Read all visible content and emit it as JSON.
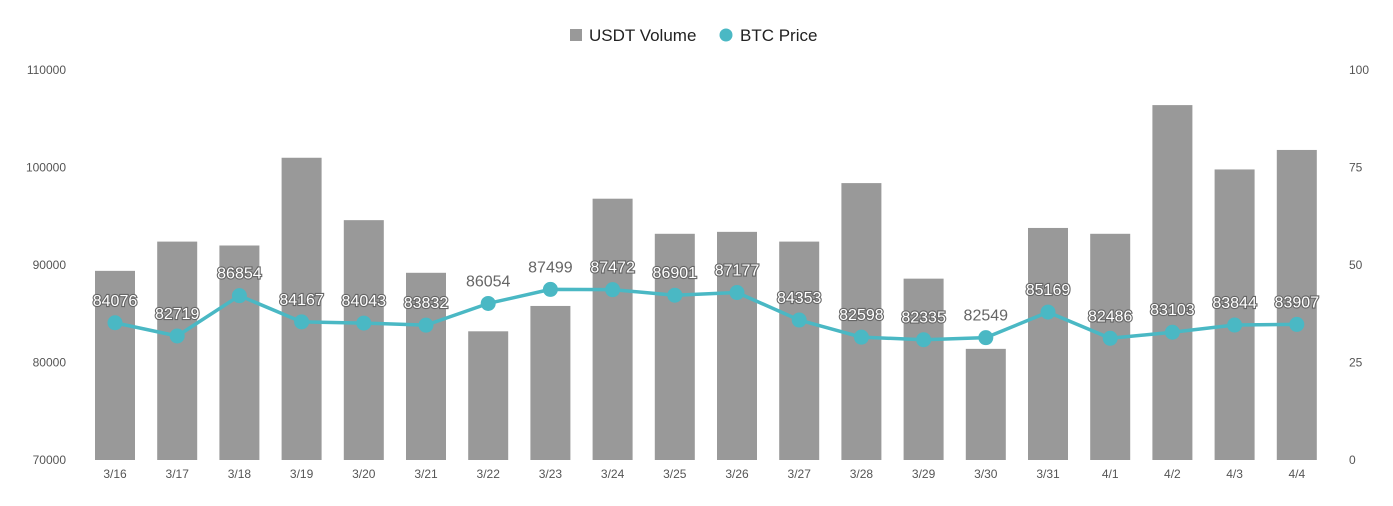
{
  "chart_data": {
    "type": "bar+line",
    "categories": [
      "3/16",
      "3/17",
      "3/18",
      "3/19",
      "3/20",
      "3/21",
      "3/22",
      "3/23",
      "3/24",
      "3/25",
      "3/26",
      "3/27",
      "3/28",
      "3/29",
      "3/30",
      "3/31",
      "4/1",
      "4/2",
      "4/3",
      "4/4"
    ],
    "series": [
      {
        "name": "USDT Volume",
        "type": "bar",
        "axis": "right",
        "color": "#999999",
        "values": [
          48.5,
          56,
          55,
          77.5,
          61.5,
          48,
          33,
          39.5,
          67,
          58,
          58.5,
          56,
          71,
          46.5,
          28.5,
          59.5,
          58,
          91,
          74.5,
          79.5
        ]
      },
      {
        "name": "BTC Price",
        "type": "line",
        "axis": "left",
        "color": "#4ab8c4",
        "values": [
          84076,
          82719,
          86854,
          84167,
          84043,
          83832,
          86054,
          87499,
          87472,
          86901,
          87177,
          84353,
          82598,
          82335,
          82549,
          85169,
          82486,
          83103,
          83844,
          83907
        ]
      }
    ],
    "y_left": {
      "min": 70000,
      "max": 110000,
      "ticks": [
        70000,
        80000,
        90000,
        100000,
        110000
      ]
    },
    "y_right": {
      "min": 0,
      "max": 100,
      "ticks": [
        0,
        25,
        50,
        75,
        100
      ]
    },
    "legend": {
      "position": "top-center"
    },
    "grid": false
  }
}
